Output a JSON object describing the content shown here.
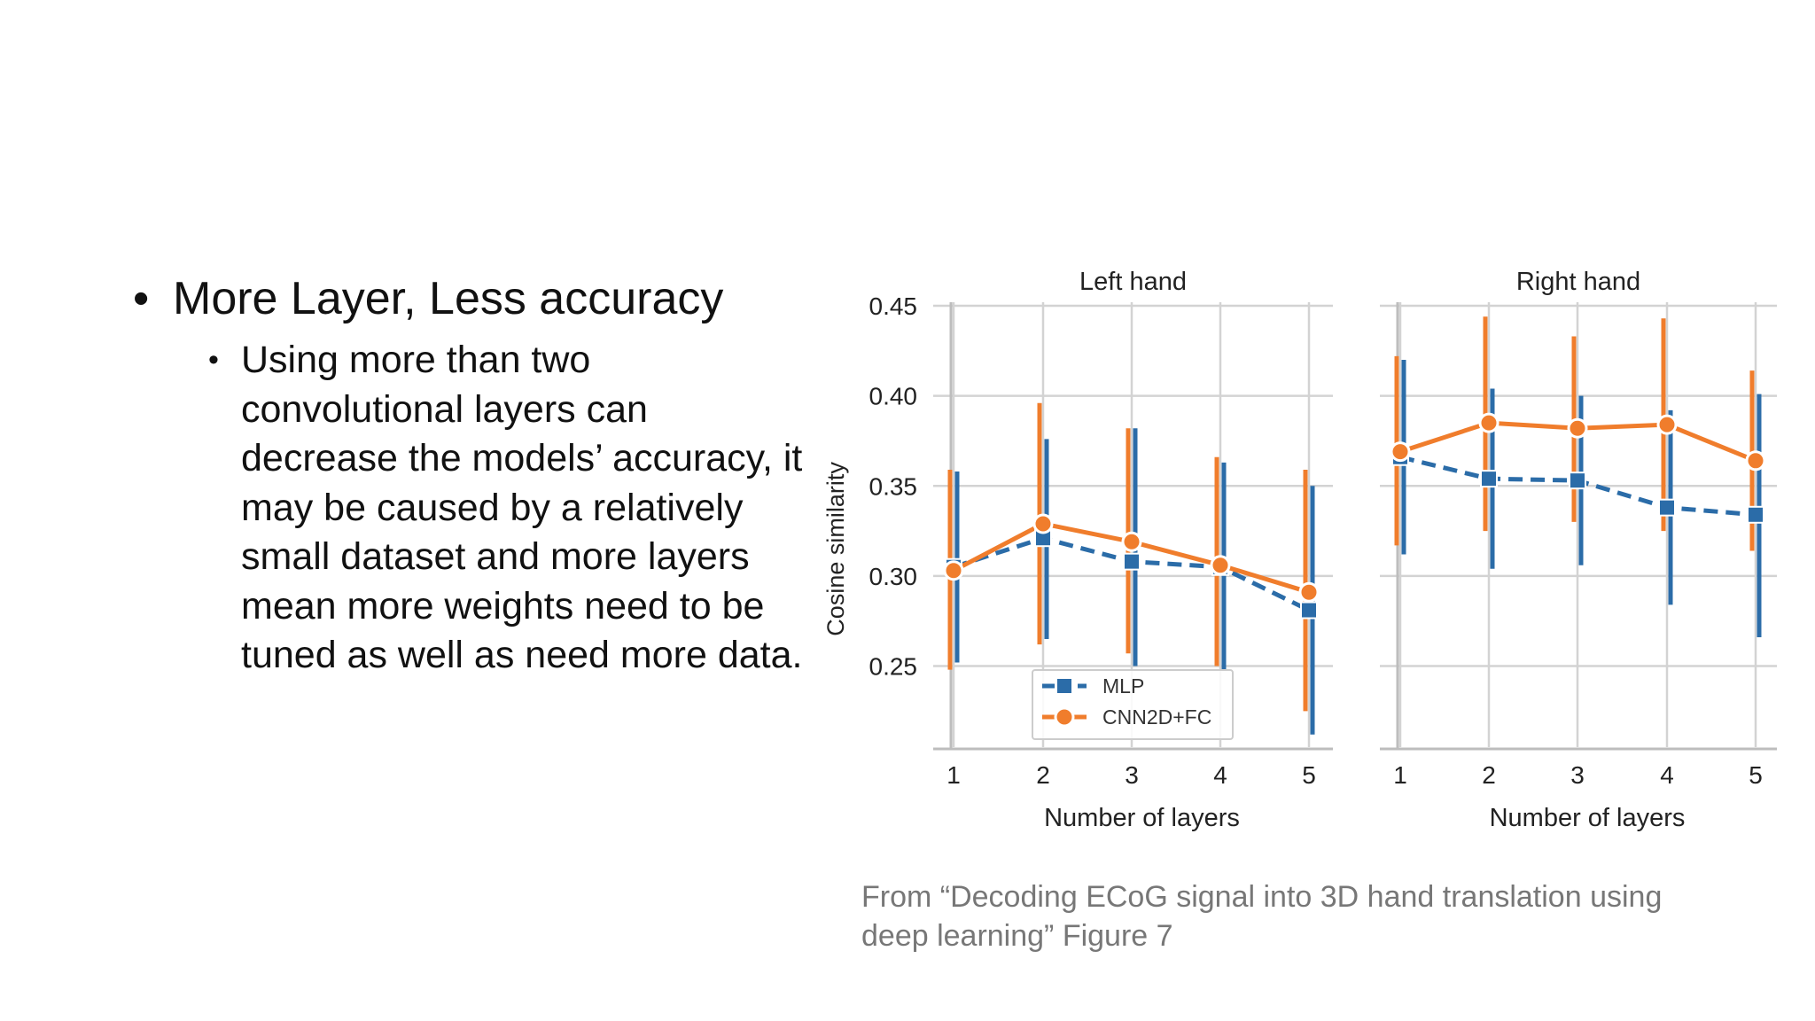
{
  "slide": {
    "bullet_main": "More Layer, Less accuracy",
    "bullet_sub": "Using more than two convolutional layers can decrease the models’ accuracy, it may be caused by a relatively small dataset and more layers mean more weights need to be tuned as well as need more data.",
    "caption": "From “Decoding ECoG signal into 3D hand translation using deep learning” Figure 7"
  },
  "chart_data": {
    "type": "line",
    "ylabel": "Cosine similarity",
    "ylim": [
      0.205,
      0.45
    ],
    "yticks": [
      "0.45",
      "0.40",
      "0.35",
      "0.30",
      "0.25"
    ],
    "ytick_values": [
      0.45,
      0.4,
      0.35,
      0.3,
      0.25
    ],
    "grid": true,
    "legend_placement": "lower-center (left panel)",
    "colors": {
      "MLP": "#2b6ca8",
      "CNN2D+FC": "#f07d2c"
    },
    "panels": [
      {
        "title": "Left hand",
        "xlabel": "Number of layers",
        "x": [
          "1",
          "2",
          "3",
          "4",
          "5"
        ],
        "series": [
          {
            "name": "MLP",
            "marker": "square",
            "dash": true,
            "values": [
              0.305,
              0.321,
              0.308,
              0.305,
              0.281
            ],
            "err_low": [
              0.252,
              0.265,
              0.25,
              0.248,
              0.212
            ],
            "err_high": [
              0.358,
              0.376,
              0.382,
              0.363,
              0.35
            ]
          },
          {
            "name": "CNN2D+FC",
            "marker": "circle",
            "dash": false,
            "values": [
              0.303,
              0.329,
              0.319,
              0.306,
              0.291
            ],
            "err_low": [
              0.248,
              0.262,
              0.257,
              0.25,
              0.225
            ],
            "err_high": [
              0.359,
              0.396,
              0.382,
              0.366,
              0.359
            ]
          }
        ]
      },
      {
        "title": "Right hand",
        "xlabel": "Number of layers",
        "x": [
          "1",
          "2",
          "3",
          "4",
          "5"
        ],
        "series": [
          {
            "name": "MLP",
            "marker": "square",
            "dash": true,
            "values": [
              0.366,
              0.354,
              0.353,
              0.338,
              0.334
            ],
            "err_low": [
              0.312,
              0.304,
              0.306,
              0.284,
              0.266
            ],
            "err_high": [
              0.42,
              0.404,
              0.4,
              0.392,
              0.401
            ]
          },
          {
            "name": "CNN2D+FC",
            "marker": "circle",
            "dash": false,
            "values": [
              0.369,
              0.385,
              0.382,
              0.384,
              0.364
            ],
            "err_low": [
              0.317,
              0.325,
              0.33,
              0.325,
              0.314
            ],
            "err_high": [
              0.422,
              0.444,
              0.433,
              0.443,
              0.414
            ]
          }
        ]
      }
    ]
  }
}
